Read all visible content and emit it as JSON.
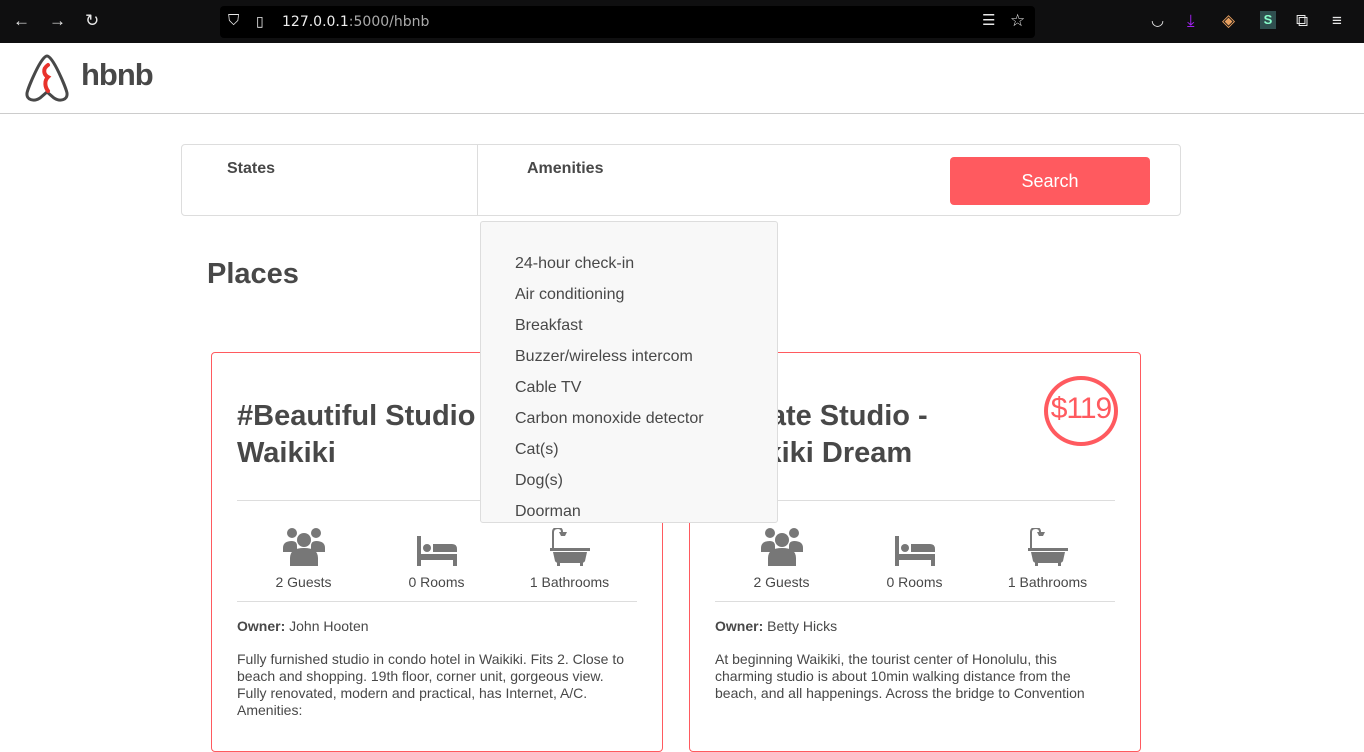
{
  "browser": {
    "url_host": "127.0.0.1",
    "url_path": ":5000/hbnb"
  },
  "header": {
    "logo_text": "hbnb"
  },
  "filters": {
    "states_label": "States",
    "amenities_label": "Amenities",
    "search_label": "Search"
  },
  "amenities_dropdown": [
    "24-hour check-in",
    "Air conditioning",
    "Breakfast",
    "Buzzer/wireless intercom",
    "Cable TV",
    "Carbon monoxide detector",
    "Cat(s)",
    "Dog(s)",
    "Doorman"
  ],
  "places": {
    "title": "Places",
    "items": [
      {
        "name": "#Beautiful Studio in Waikiki",
        "price": "",
        "guests": "2 Guests",
        "rooms": "0 Rooms",
        "bathrooms": "1 Bathrooms",
        "owner_label": "Owner:",
        "owner": "John Hooten",
        "description": "Fully furnished studio in condo hotel in Waikiki. Fits 2. Close to beach and shopping. 19th floor, corner unit, gorgeous view. Fully renovated, modern and practical, has Internet, A/C. Amenities:"
      },
      {
        "name": "Private Studio - Waikiki Dream",
        "price": "$119",
        "guests": "2 Guests",
        "rooms": "0 Rooms",
        "bathrooms": "1 Bathrooms",
        "owner_label": "Owner:",
        "owner": "Betty Hicks",
        "description": "At beginning Waikiki, the tourist center of Honolulu, this charming studio is about 10min walking distance from the beach, and all happenings. Across the bridge to Convention"
      }
    ]
  },
  "colors": {
    "accent": "#FF5A5F",
    "text": "#484848"
  }
}
